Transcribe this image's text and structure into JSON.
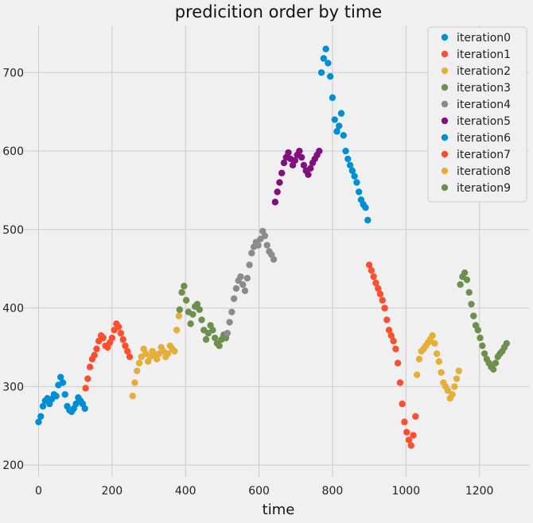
{
  "chart_data": {
    "type": "scatter",
    "title": "predicition order by time",
    "xlabel": "time",
    "ylabel": "",
    "xlim": [
      -40,
      1335
    ],
    "ylim": [
      185,
      760
    ],
    "xticks": [
      0,
      200,
      400,
      600,
      800,
      1000,
      1200
    ],
    "yticks": [
      200,
      300,
      400,
      500,
      600,
      700
    ],
    "grid": true,
    "legend_position": "top-right",
    "series": [
      {
        "name": "iteration0",
        "color": "#008fd5",
        "x": [
          0,
          6,
          12,
          18,
          24,
          30,
          36,
          42,
          48,
          54,
          60,
          66,
          72,
          78,
          84,
          90,
          96,
          102,
          108,
          114,
          120,
          126
        ],
        "y": [
          255,
          262,
          275,
          282,
          285,
          278,
          284,
          290,
          288,
          302,
          312,
          305,
          290,
          275,
          270,
          268,
          272,
          278,
          286,
          282,
          278,
          272
        ]
      },
      {
        "name": "iteration1",
        "color": "#fc4f30",
        "x": [
          128,
          134,
          140,
          146,
          152,
          158,
          164,
          170,
          176,
          182,
          188,
          194,
          200,
          206,
          212,
          218,
          224,
          230,
          236,
          242,
          248
        ],
        "y": [
          298,
          310,
          325,
          335,
          340,
          348,
          358,
          365,
          362,
          352,
          350,
          356,
          362,
          372,
          380,
          376,
          368,
          360,
          352,
          345,
          338
        ]
      },
      {
        "name": "iteration2",
        "color": "#e5ae38",
        "x": [
          256,
          262,
          268,
          274,
          280,
          286,
          292,
          298,
          304,
          310,
          316,
          322,
          328,
          334,
          340,
          346,
          352,
          358,
          364,
          370,
          376,
          382
        ],
        "y": [
          288,
          305,
          320,
          330,
          338,
          348,
          342,
          332,
          338,
          345,
          340,
          335,
          342,
          350,
          345,
          338,
          342,
          352,
          348,
          345,
          372,
          390
        ]
      },
      {
        "name": "iteration3",
        "color": "#6d904f",
        "x": [
          384,
          390,
          396,
          402,
          408,
          414,
          420,
          426,
          432,
          438,
          444,
          450,
          456,
          462,
          468,
          474,
          480,
          486,
          492,
          498,
          504,
          510
        ],
        "y": [
          398,
          420,
          428,
          410,
          395,
          380,
          392,
          402,
          405,
          398,
          385,
          372,
          360,
          368,
          378,
          372,
          362,
          355,
          352,
          360,
          366,
          362
        ]
      },
      {
        "name": "iteration4",
        "color": "#8b8b8b",
        "x": [
          514,
          520,
          526,
          532,
          538,
          544,
          550,
          556,
          562,
          568,
          574,
          580,
          586,
          592,
          598,
          604,
          610,
          616,
          622,
          628,
          634,
          640
        ],
        "y": [
          368,
          382,
          395,
          412,
          425,
          435,
          440,
          430,
          422,
          438,
          455,
          470,
          478,
          484,
          480,
          488,
          498,
          492,
          480,
          472,
          468,
          462
        ]
      },
      {
        "name": "iteration5",
        "color": "#810f7c",
        "x": [
          644,
          650,
          656,
          662,
          668,
          674,
          680,
          686,
          692,
          698,
          704,
          710,
          716,
          722,
          728,
          734,
          740,
          746,
          752,
          758,
          764
        ],
        "y": [
          535,
          548,
          560,
          572,
          585,
          592,
          598,
          590,
          582,
          588,
          595,
          600,
          592,
          582,
          575,
          570,
          578,
          585,
          590,
          595,
          600
        ]
      },
      {
        "name": "iteration6",
        "color": "#008fd5",
        "x": [
          770,
          776,
          782,
          788,
          794,
          800,
          806,
          812,
          818,
          824,
          830,
          836,
          842,
          848,
          854,
          860,
          866,
          872,
          878,
          884,
          890,
          896
        ],
        "y": [
          700,
          718,
          730,
          712,
          695,
          668,
          640,
          625,
          632,
          648,
          620,
          600,
          590,
          582,
          575,
          568,
          560,
          548,
          538,
          532,
          528,
          512
        ]
      },
      {
        "name": "iteration7",
        "color": "#fc4f30",
        "x": [
          900,
          906,
          912,
          918,
          924,
          930,
          936,
          942,
          948,
          954,
          960,
          966,
          972,
          978,
          984,
          990,
          996,
          1002,
          1008,
          1014,
          1020,
          1026
        ],
        "y": [
          455,
          448,
          440,
          432,
          425,
          418,
          410,
          400,
          385,
          372,
          365,
          358,
          348,
          330,
          305,
          278,
          255,
          242,
          232,
          225,
          238,
          262
        ]
      },
      {
        "name": "iteration8",
        "color": "#e5ae38",
        "x": [
          1030,
          1036,
          1042,
          1048,
          1054,
          1060,
          1066,
          1072,
          1078,
          1084,
          1090,
          1096,
          1102,
          1108,
          1114,
          1120,
          1126,
          1132,
          1138,
          1144
        ],
        "y": [
          315,
          335,
          345,
          348,
          352,
          356,
          360,
          365,
          355,
          342,
          332,
          318,
          305,
          300,
          295,
          285,
          290,
          300,
          310,
          320
        ]
      },
      {
        "name": "iteration9",
        "color": "#6d904f",
        "x": [
          1148,
          1154,
          1160,
          1166,
          1172,
          1178,
          1184,
          1190,
          1196,
          1202,
          1208,
          1214,
          1220,
          1226,
          1232,
          1238,
          1244,
          1250,
          1256,
          1262,
          1268,
          1274
        ],
        "y": [
          430,
          440,
          445,
          436,
          420,
          405,
          390,
          378,
          372,
          362,
          352,
          342,
          335,
          330,
          325,
          322,
          330,
          338,
          342,
          345,
          350,
          355
        ]
      }
    ]
  }
}
